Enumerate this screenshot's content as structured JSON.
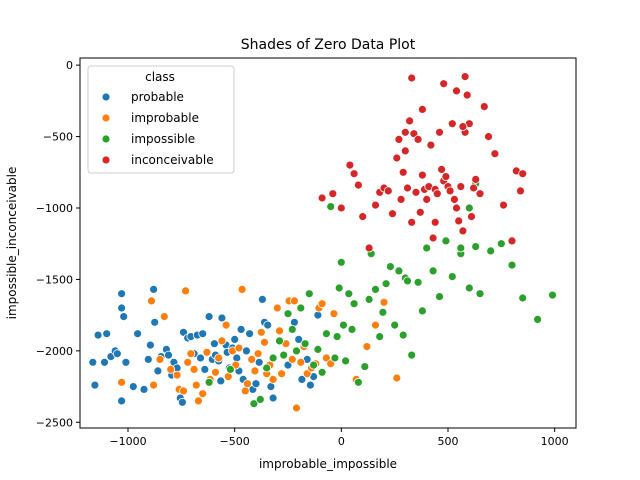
{
  "chart_data": {
    "type": "scatter",
    "title": "Shades of Zero Data Plot",
    "xlabel": "improbable_impossible",
    "ylabel": "impossible_inconceivable",
    "xlim": [
      -1225,
      1100
    ],
    "ylim": [
      -2540,
      50
    ],
    "xticks": [
      -1000,
      -500,
      0,
      500,
      1000
    ],
    "xtick_labels": [
      "−1000",
      "−500",
      "0",
      "500",
      "1000"
    ],
    "yticks": [
      0,
      -500,
      -1000,
      -1500,
      -2000,
      -2500
    ],
    "ytick_labels": [
      "0",
      "−500",
      "−1000",
      "−1500",
      "−2000",
      "−2500"
    ],
    "grid": false,
    "legend": {
      "title": "class",
      "placement": "top-left"
    },
    "series": [
      {
        "name": "probable",
        "color": "#1f77b4",
        "points": [
          [
            -1165,
            -2080
          ],
          [
            -1155,
            -2240
          ],
          [
            -1140,
            -1890
          ],
          [
            -1110,
            -2080
          ],
          [
            -1100,
            -1880
          ],
          [
            -1080,
            -2040
          ],
          [
            -1060,
            -2000
          ],
          [
            -1050,
            -2020
          ],
          [
            -1030,
            -2350
          ],
          [
            -1030,
            -1600
          ],
          [
            -1030,
            -1700
          ],
          [
            -1020,
            -1760
          ],
          [
            -1010,
            -2080
          ],
          [
            -975,
            -2250
          ],
          [
            -955,
            -1880
          ],
          [
            -925,
            -2270
          ],
          [
            -905,
            -2060
          ],
          [
            -895,
            -1960
          ],
          [
            -880,
            -1570
          ],
          [
            -875,
            -1800
          ],
          [
            -860,
            -2140
          ],
          [
            -845,
            -2040
          ],
          [
            -820,
            -1990
          ],
          [
            -810,
            -2030
          ],
          [
            -795,
            -2170
          ],
          [
            -785,
            -2080
          ],
          [
            -770,
            -2120
          ],
          [
            -755,
            -2330
          ],
          [
            -745,
            -2360
          ],
          [
            -740,
            -1870
          ],
          [
            -720,
            -1910
          ],
          [
            -705,
            -1900
          ],
          [
            -690,
            -2020
          ],
          [
            -675,
            -1890
          ],
          [
            -660,
            -2050
          ],
          [
            -650,
            -1880
          ],
          [
            -640,
            -2130
          ],
          [
            -620,
            -1760
          ],
          [
            -605,
            -2060
          ],
          [
            -595,
            -1950
          ],
          [
            -590,
            -2030
          ],
          [
            -575,
            -2070
          ],
          [
            -565,
            -2210
          ],
          [
            -560,
            -1770
          ],
          [
            -540,
            -1960
          ],
          [
            -535,
            -2010
          ],
          [
            -525,
            -2120
          ],
          [
            -510,
            -1980
          ],
          [
            -500,
            -1920
          ],
          [
            -490,
            -2050
          ],
          [
            -480,
            -2140
          ],
          [
            -470,
            -1850
          ],
          [
            -460,
            -2200
          ],
          [
            -445,
            -2000
          ],
          [
            -430,
            -1880
          ],
          [
            -415,
            -2270
          ],
          [
            -400,
            -2230
          ],
          [
            -385,
            -2080
          ],
          [
            -370,
            -1640
          ],
          [
            -360,
            -1800
          ],
          [
            -345,
            -1820
          ],
          [
            -330,
            -2250
          ],
          [
            -320,
            -2330
          ],
          [
            -250,
            -2100
          ],
          [
            -220,
            -1800
          ],
          [
            -200,
            -1920
          ],
          [
            -185,
            -2200
          ],
          [
            -160,
            -2060
          ],
          [
            -145,
            -2240
          ],
          [
            -130,
            -2180
          ],
          [
            -110,
            -1750
          ]
        ]
      },
      {
        "name": "improbable",
        "color": "#ff7f0e",
        "points": [
          [
            -1030,
            -2220
          ],
          [
            -890,
            -1650
          ],
          [
            -880,
            -2240
          ],
          [
            -850,
            -2060
          ],
          [
            -830,
            -1760
          ],
          [
            -800,
            -2130
          ],
          [
            -770,
            -2170
          ],
          [
            -760,
            -2270
          ],
          [
            -740,
            -2280
          ],
          [
            -730,
            -1580
          ],
          [
            -720,
            -2080
          ],
          [
            -705,
            -2020
          ],
          [
            -690,
            -2130
          ],
          [
            -680,
            -2240
          ],
          [
            -670,
            -2350
          ],
          [
            -650,
            -2300
          ],
          [
            -630,
            -2010
          ],
          [
            -615,
            -2200
          ],
          [
            -590,
            -2150
          ],
          [
            -575,
            -2050
          ],
          [
            -560,
            -1930
          ],
          [
            -540,
            -1820
          ],
          [
            -530,
            -2180
          ],
          [
            -510,
            -2000
          ],
          [
            -495,
            -2100
          ],
          [
            -480,
            -1980
          ],
          [
            -465,
            -1570
          ],
          [
            -450,
            -2280
          ],
          [
            -440,
            -2230
          ],
          [
            -420,
            -2060
          ],
          [
            -405,
            -2140
          ],
          [
            -390,
            -2020
          ],
          [
            -375,
            -1870
          ],
          [
            -360,
            -1940
          ],
          [
            -350,
            -2160
          ],
          [
            -335,
            -2100
          ],
          [
            -320,
            -2200
          ],
          [
            -300,
            -1700
          ],
          [
            -290,
            -1860
          ],
          [
            -280,
            -2160
          ],
          [
            -260,
            -1950
          ],
          [
            -245,
            -1650
          ],
          [
            -230,
            -2060
          ],
          [
            -220,
            -1650
          ],
          [
            -210,
            -2400
          ],
          [
            -190,
            -2080
          ],
          [
            -175,
            -1970
          ],
          [
            -160,
            -2160
          ],
          [
            -140,
            -2120
          ],
          [
            -120,
            -2090
          ],
          [
            -105,
            -1700
          ],
          [
            -90,
            -1670
          ],
          [
            -70,
            -2050
          ],
          [
            -50,
            -2090
          ],
          [
            -35,
            -1740
          ],
          [
            -15,
            -1900
          ],
          [
            70,
            -2200
          ],
          [
            120,
            -1970
          ],
          [
            160,
            -1820
          ],
          [
            200,
            -1660
          ],
          [
            260,
            -2190
          ]
        ]
      },
      {
        "name": "impossible",
        "color": "#2ca02c",
        "points": [
          [
            -620,
            -2220
          ],
          [
            -520,
            -2130
          ],
          [
            -410,
            -2370
          ],
          [
            -380,
            -2340
          ],
          [
            -350,
            -2120
          ],
          [
            -320,
            -2050
          ],
          [
            -290,
            -1930
          ],
          [
            -270,
            -2030
          ],
          [
            -250,
            -1740
          ],
          [
            -230,
            -1850
          ],
          [
            -210,
            -2000
          ],
          [
            -190,
            -1700
          ],
          [
            -170,
            -1950
          ],
          [
            -150,
            -1600
          ],
          [
            -130,
            -2100
          ],
          [
            -110,
            -1990
          ],
          [
            -90,
            -2150
          ],
          [
            -70,
            -1880
          ],
          [
            -50,
            -990
          ],
          [
            -30,
            -2050
          ],
          [
            -20,
            -1900
          ],
          [
            -10,
            -1560
          ],
          [
            0,
            -1380
          ],
          [
            10,
            -1820
          ],
          [
            20,
            -2070
          ],
          [
            35,
            -1600
          ],
          [
            50,
            -1850
          ],
          [
            60,
            -1670
          ],
          [
            80,
            -2220
          ],
          [
            110,
            -2110
          ],
          [
            130,
            -1640
          ],
          [
            140,
            -1320
          ],
          [
            160,
            -1570
          ],
          [
            180,
            -1900
          ],
          [
            195,
            -1730
          ],
          [
            210,
            -1530
          ],
          [
            230,
            -1410
          ],
          [
            250,
            -1820
          ],
          [
            270,
            -1440
          ],
          [
            290,
            -1890
          ],
          [
            300,
            -1490
          ],
          [
            310,
            -1510
          ],
          [
            330,
            -2030
          ],
          [
            360,
            -1520
          ],
          [
            380,
            -1720
          ],
          [
            400,
            -1280
          ],
          [
            430,
            -1440
          ],
          [
            460,
            -1620
          ],
          [
            490,
            -1230
          ],
          [
            520,
            -1480
          ],
          [
            560,
            -1320
          ],
          [
            600,
            -1560
          ],
          [
            630,
            -1270
          ],
          [
            650,
            -1600
          ],
          [
            700,
            -1300
          ],
          [
            750,
            -1250
          ],
          [
            800,
            -1400
          ],
          [
            850,
            -1630
          ],
          [
            920,
            -1780
          ],
          [
            990,
            -1610
          ],
          [
            560,
            -1280
          ],
          [
            600,
            -1000
          ],
          [
            630,
            -830
          ]
        ]
      },
      {
        "name": "inconceivable",
        "color": "#d62728",
        "points": [
          [
            -90,
            -930
          ],
          [
            -40,
            -900
          ],
          [
            0,
            -1000
          ],
          [
            40,
            -700
          ],
          [
            60,
            -760
          ],
          [
            80,
            -840
          ],
          [
            100,
            -1060
          ],
          [
            130,
            -1280
          ],
          [
            160,
            -980
          ],
          [
            180,
            -890
          ],
          [
            200,
            -860
          ],
          [
            220,
            -880
          ],
          [
            240,
            -1040
          ],
          [
            260,
            -650
          ],
          [
            280,
            -940
          ],
          [
            290,
            -750
          ],
          [
            300,
            -600
          ],
          [
            310,
            -860
          ],
          [
            320,
            -390
          ],
          [
            330,
            -1100
          ],
          [
            340,
            -480
          ],
          [
            350,
            -890
          ],
          [
            360,
            -520
          ],
          [
            370,
            -1030
          ],
          [
            380,
            -770
          ],
          [
            390,
            -870
          ],
          [
            400,
            -940
          ],
          [
            410,
            -850
          ],
          [
            420,
            -560
          ],
          [
            430,
            -1210
          ],
          [
            440,
            -870
          ],
          [
            450,
            -900
          ],
          [
            460,
            -470
          ],
          [
            470,
            -730
          ],
          [
            480,
            -810
          ],
          [
            490,
            -780
          ],
          [
            500,
            -850
          ],
          [
            510,
            -880
          ],
          [
            520,
            -410
          ],
          [
            530,
            -940
          ],
          [
            540,
            -1000
          ],
          [
            550,
            -1090
          ],
          [
            560,
            -850
          ],
          [
            570,
            -1160
          ],
          [
            580,
            -470
          ],
          [
            590,
            -210
          ],
          [
            600,
            -410
          ],
          [
            610,
            -1060
          ],
          [
            620,
            -860
          ],
          [
            630,
            -800
          ],
          [
            650,
            -900
          ],
          [
            670,
            -290
          ],
          [
            690,
            -500
          ],
          [
            720,
            -620
          ],
          [
            760,
            -980
          ],
          [
            800,
            -1230
          ],
          [
            820,
            -740
          ],
          [
            840,
            -880
          ],
          [
            850,
            -760
          ],
          [
            480,
            -130
          ],
          [
            540,
            -180
          ],
          [
            570,
            -430
          ],
          [
            380,
            -310
          ],
          [
            330,
            -90
          ],
          [
            580,
            -80
          ],
          [
            300,
            -470
          ],
          [
            270,
            -520
          ],
          [
            440,
            -1100
          ]
        ]
      }
    ]
  }
}
